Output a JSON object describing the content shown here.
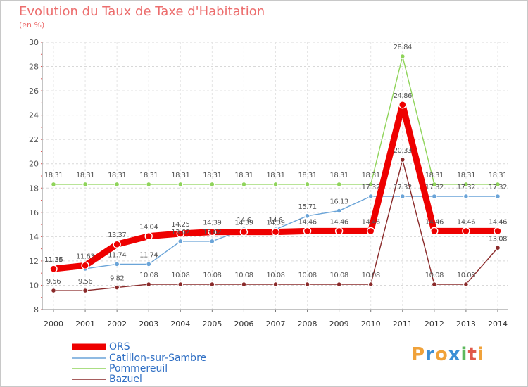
{
  "title": "Evolution du Taux de Taxe d'Habitation",
  "subtitle": "(en %)",
  "logo": {
    "text": "Proxiti",
    "letters": [
      "P",
      "r",
      "o",
      "x",
      "i",
      "t",
      "i"
    ],
    "colors": [
      "#f0a23a",
      "#3c8fd6",
      "#f0a23a",
      "#3c8fd6",
      "#5cb85c",
      "#e0584a",
      "#f0a23a"
    ]
  },
  "chart_data": {
    "type": "line",
    "x": [
      "2000",
      "2001",
      "2002",
      "2003",
      "2004",
      "2005",
      "2006",
      "2007",
      "2008",
      "2009",
      "2010",
      "2011",
      "2012",
      "2013",
      "2014"
    ],
    "ylim": [
      8,
      30
    ],
    "yticks": [
      "8",
      "10",
      "12",
      "14",
      "16",
      "18",
      "20",
      "22",
      "24",
      "26",
      "28",
      "30"
    ],
    "grid": true,
    "legend_position": "bottom-left",
    "series": [
      {
        "name": "Pommereuil",
        "color": "#8fd45a",
        "values": [
          18.31,
          18.31,
          18.31,
          18.31,
          18.31,
          18.31,
          18.31,
          18.31,
          18.31,
          18.31,
          18.31,
          28.84,
          18.31,
          18.31,
          18.31
        ],
        "labels": [
          "18.31",
          "18.31",
          "18.31",
          "18.31",
          "18.31",
          "18.31",
          "18.31",
          "18.31",
          "18.31",
          "18.31",
          "18.31",
          "28.84",
          "18.31",
          "18.31",
          "18.31"
        ]
      },
      {
        "name": "Catillon-sur-Sambre",
        "color": "#6aa4d8",
        "values": [
          11.36,
          11.36,
          11.74,
          11.74,
          13.62,
          13.62,
          14.6,
          14.6,
          15.71,
          16.13,
          17.32,
          17.32,
          17.32,
          17.32,
          17.32
        ],
        "labels": [
          "11.36",
          "",
          "11.74",
          "11.74",
          "13.62",
          "13.62",
          "14.6",
          "14.6",
          "15.71",
          "16.13",
          "17.32",
          "17.32",
          "17.32",
          "17.32",
          "17.32"
        ]
      },
      {
        "name": "Bazuel",
        "color": "#8a2a2a",
        "values": [
          9.56,
          9.56,
          9.82,
          10.08,
          10.08,
          10.08,
          10.08,
          10.08,
          10.08,
          10.08,
          10.08,
          20.33,
          10.08,
          10.08,
          13.08
        ],
        "labels": [
          "9.56",
          "9.56",
          "9.82",
          "10.08",
          "10.08",
          "10.08",
          "10.08",
          "10.08",
          "10.08",
          "10.08",
          "10.08",
          "20.33",
          "10.08",
          "10.08",
          "13.08"
        ]
      },
      {
        "name": "ORS",
        "color": "#ee0000",
        "values": [
          11.35,
          11.63,
          13.37,
          14.04,
          14.25,
          14.39,
          14.39,
          14.39,
          14.46,
          14.46,
          14.46,
          24.86,
          14.46,
          14.46,
          14.46
        ],
        "labels": [
          "11.35",
          "11.63",
          "13.37",
          "14.04",
          "14.25",
          "14.39",
          "14.39",
          "14.39",
          "14.46",
          "14.46",
          "14.46",
          "24.86",
          "14.46",
          "14.46",
          "14.46"
        ]
      }
    ]
  },
  "legend": [
    {
      "name": "ORS",
      "color": "#ee0000"
    },
    {
      "name": "Catillon-sur-Sambre",
      "color": "#6aa4d8"
    },
    {
      "name": "Pommereuil",
      "color": "#8fd45a"
    },
    {
      "name": "Bazuel",
      "color": "#8a2a2a"
    }
  ]
}
